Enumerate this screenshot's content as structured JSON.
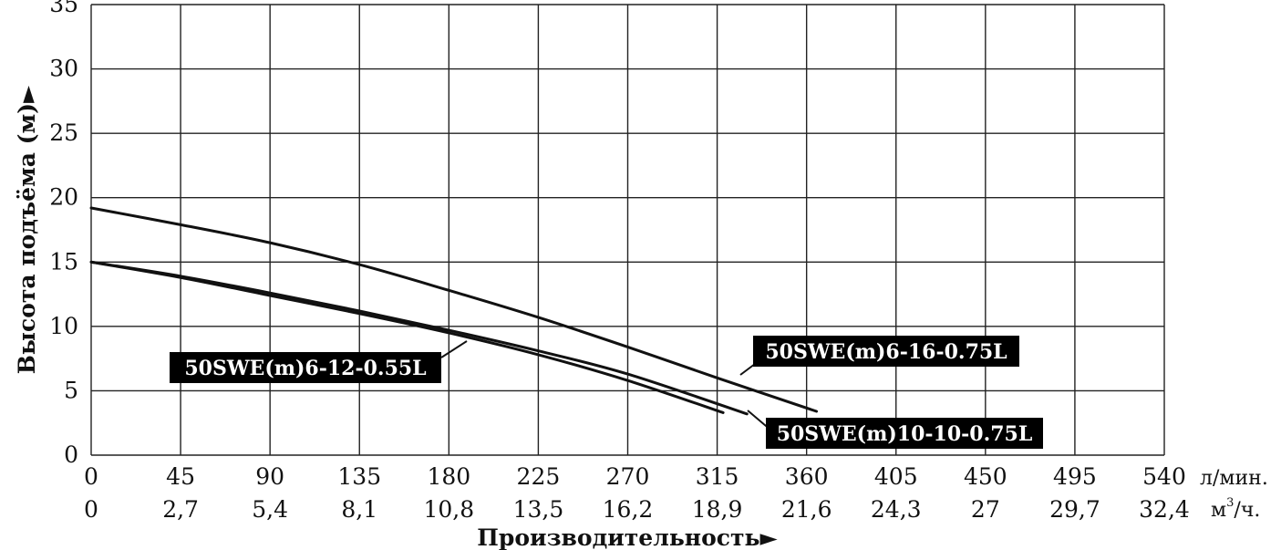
{
  "chart_data": {
    "type": "line",
    "title": "",
    "xlabel": "Производительность►",
    "ylabel": "Высота подъёма (м)►",
    "xlim": [
      0,
      540
    ],
    "ylim": [
      0,
      35
    ],
    "grid": true,
    "x_unit": "л/мин.",
    "x2_unit_base": "м",
    "x2_unit_sup": "3",
    "x2_unit_tail": "/ч.",
    "x_ticks": [
      "0",
      "45",
      "90",
      "135",
      "180",
      "225",
      "270",
      "315",
      "360",
      "405",
      "450",
      "495",
      "540"
    ],
    "x2_ticks": [
      "0",
      "2,7",
      "5,4",
      "8,1",
      "10,8",
      "13,5",
      "16,2",
      "18,9",
      "21,6",
      "24,3",
      "27",
      "29,7",
      "32,4"
    ],
    "y_ticks": [
      "0",
      "5",
      "10",
      "15",
      "20",
      "25",
      "30",
      "35"
    ],
    "series": [
      {
        "name": "50SWE(m)6-16-0.75L",
        "x": [
          0,
          45,
          90,
          135,
          180,
          225,
          270,
          315,
          365
        ],
        "y": [
          19.2,
          17.9,
          16.5,
          14.8,
          12.8,
          10.7,
          8.4,
          6.0,
          3.4
        ]
      },
      {
        "name": "50SWE(m)6-12-0.55L",
        "x": [
          0,
          45,
          90,
          135,
          180,
          225,
          270,
          318
        ],
        "y": [
          15.0,
          13.8,
          12.4,
          11.0,
          9.5,
          7.8,
          5.8,
          3.3
        ]
      },
      {
        "name": "50SWE(m)10-10-0.75L",
        "x": [
          0,
          45,
          90,
          135,
          180,
          225,
          270,
          330
        ],
        "y": [
          15.0,
          13.9,
          12.6,
          11.2,
          9.7,
          8.1,
          6.3,
          3.2
        ]
      }
    ]
  }
}
